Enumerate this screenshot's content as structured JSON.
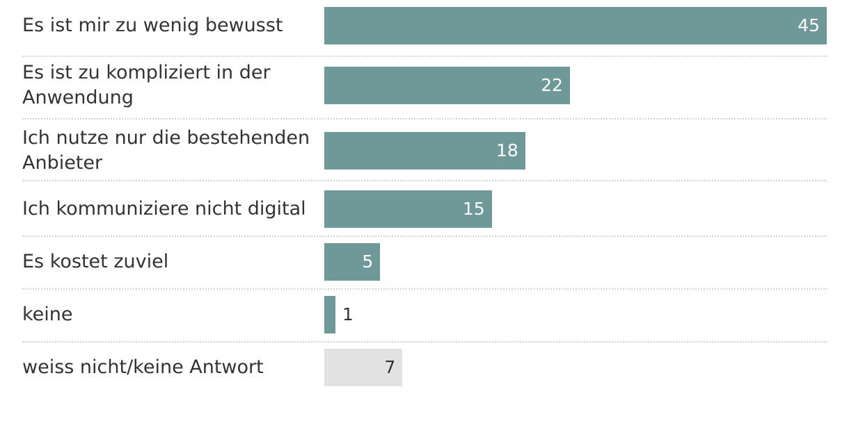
{
  "chart_data": {
    "type": "bar",
    "orientation": "horizontal",
    "categories": [
      "Es ist mir zu wenig bewusst",
      "Es ist zu kompliziert in der Anwendung",
      "Ich nutze nur die bestehenden Anbieter",
      "Ich kommuniziere nicht digital",
      "Es kostet zuviel",
      "keine",
      "weiss nicht/keine Antwort"
    ],
    "values": [
      45,
      22,
      18,
      15,
      5,
      1,
      7
    ],
    "colors": [
      "#6f9999",
      "#6f9999",
      "#6f9999",
      "#6f9999",
      "#6f9999",
      "#6f9999",
      "#e2e2e2"
    ],
    "value_label_colors_inside": [
      "#ffffff",
      "#ffffff",
      "#ffffff",
      "#ffffff",
      "#ffffff",
      "#ffffff",
      "#333333"
    ],
    "value_label_color_outside": "#333333",
    "xlim": [
      0,
      45
    ],
    "title": "",
    "xlabel": "",
    "ylabel": ""
  }
}
